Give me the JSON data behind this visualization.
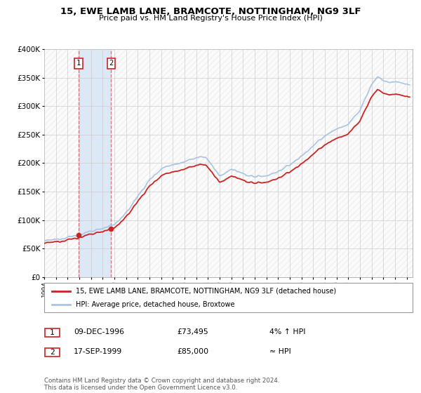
{
  "title": "15, EWE LAMB LANE, BRAMCOTE, NOTTINGHAM, NG9 3LF",
  "subtitle": "Price paid vs. HM Land Registry's House Price Index (HPI)",
  "hpi_line_color": "#a8c4e0",
  "price_line_color": "#cc2222",
  "shaded_region_color": "#dce8f5",
  "purchase_marker_color": "#cc2222",
  "vline_color": "#cc6666",
  "ylim": [
    0,
    400000
  ],
  "xlim": [
    1994.0,
    2025.5
  ],
  "yticks": [
    0,
    50000,
    100000,
    150000,
    200000,
    250000,
    300000,
    350000,
    400000
  ],
  "ytick_labels": [
    "£0",
    "£50K",
    "£100K",
    "£150K",
    "£200K",
    "£250K",
    "£300K",
    "£350K",
    "£400K"
  ],
  "xticks": [
    1994,
    1995,
    1996,
    1997,
    1998,
    1999,
    2000,
    2001,
    2002,
    2003,
    2004,
    2005,
    2006,
    2007,
    2008,
    2009,
    2010,
    2011,
    2012,
    2013,
    2014,
    2015,
    2016,
    2017,
    2018,
    2019,
    2020,
    2021,
    2022,
    2023,
    2024,
    2025
  ],
  "purchases": [
    {
      "date_num": 1996.94,
      "price": 73495,
      "label": "1"
    },
    {
      "date_num": 1999.72,
      "price": 85000,
      "label": "2"
    }
  ],
  "legend_entries": [
    "15, EWE LAMB LANE, BRAMCOTE, NOTTINGHAM, NG9 3LF (detached house)",
    "HPI: Average price, detached house, Broxtowe"
  ],
  "table_rows": [
    {
      "num": "1",
      "date": "09-DEC-1996",
      "price": "£73,495",
      "hpi": "4% ↑ HPI"
    },
    {
      "num": "2",
      "date": "17-SEP-1999",
      "price": "£85,000",
      "hpi": "≈ HPI"
    }
  ],
  "footnote": "Contains HM Land Registry data © Crown copyright and database right 2024.\nThis data is licensed under the Open Government Licence v3.0."
}
